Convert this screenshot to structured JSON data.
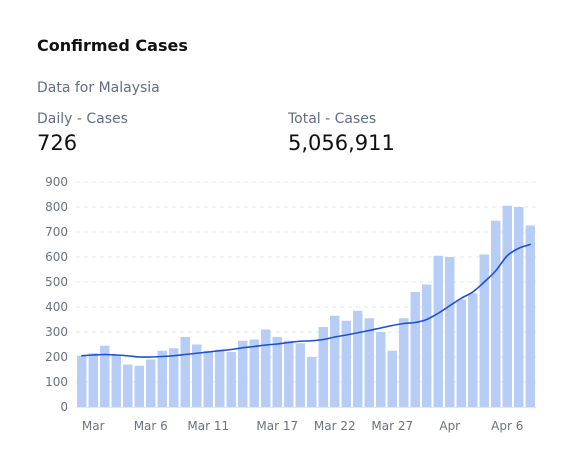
{
  "header": {
    "title": "Confirmed Cases",
    "subtitle": "Data for Malaysia"
  },
  "stats": {
    "daily": {
      "label": "Daily - Cases",
      "value": "726"
    },
    "total": {
      "label": "Total - Cases",
      "value": "5,056,911"
    }
  },
  "colors": {
    "bar": "#b7cdf6",
    "line": "#1d4fd8",
    "grid": "#e5e7eb",
    "axis": "#e5e7eb"
  },
  "chart_data": {
    "type": "bar",
    "grid": true,
    "ylim": [
      0,
      900
    ],
    "yticks": [
      0,
      100,
      200,
      300,
      400,
      500,
      600,
      700,
      800,
      900
    ],
    "xtick_labels": [
      {
        "label": "Mar",
        "index": 1
      },
      {
        "label": "Mar 6",
        "index": 6
      },
      {
        "label": "Mar 11",
        "index": 11
      },
      {
        "label": "Mar 17",
        "index": 17
      },
      {
        "label": "Mar 22",
        "index": 22
      },
      {
        "label": "Mar 27",
        "index": 27
      },
      {
        "label": "Apr",
        "index": 32
      },
      {
        "label": "Apr 6",
        "index": 37
      }
    ],
    "series": [
      {
        "type": "bar",
        "values": [
          205,
          215,
          245,
          210,
          170,
          165,
          190,
          225,
          235,
          280,
          250,
          225,
          230,
          220,
          265,
          270,
          310,
          280,
          265,
          255,
          200,
          320,
          365,
          345,
          385,
          355,
          300,
          225,
          355,
          460,
          490,
          605,
          600,
          430,
          455,
          610,
          745,
          805,
          800,
          726
        ]
      },
      {
        "type": "line",
        "values": [
          205,
          208,
          210,
          208,
          205,
          200,
          200,
          202,
          205,
          210,
          215,
          220,
          225,
          230,
          237,
          242,
          248,
          252,
          258,
          263,
          265,
          270,
          280,
          288,
          297,
          306,
          316,
          326,
          334,
          338,
          350,
          375,
          405,
          435,
          460,
          500,
          545,
          605,
          635,
          650
        ]
      }
    ]
  }
}
